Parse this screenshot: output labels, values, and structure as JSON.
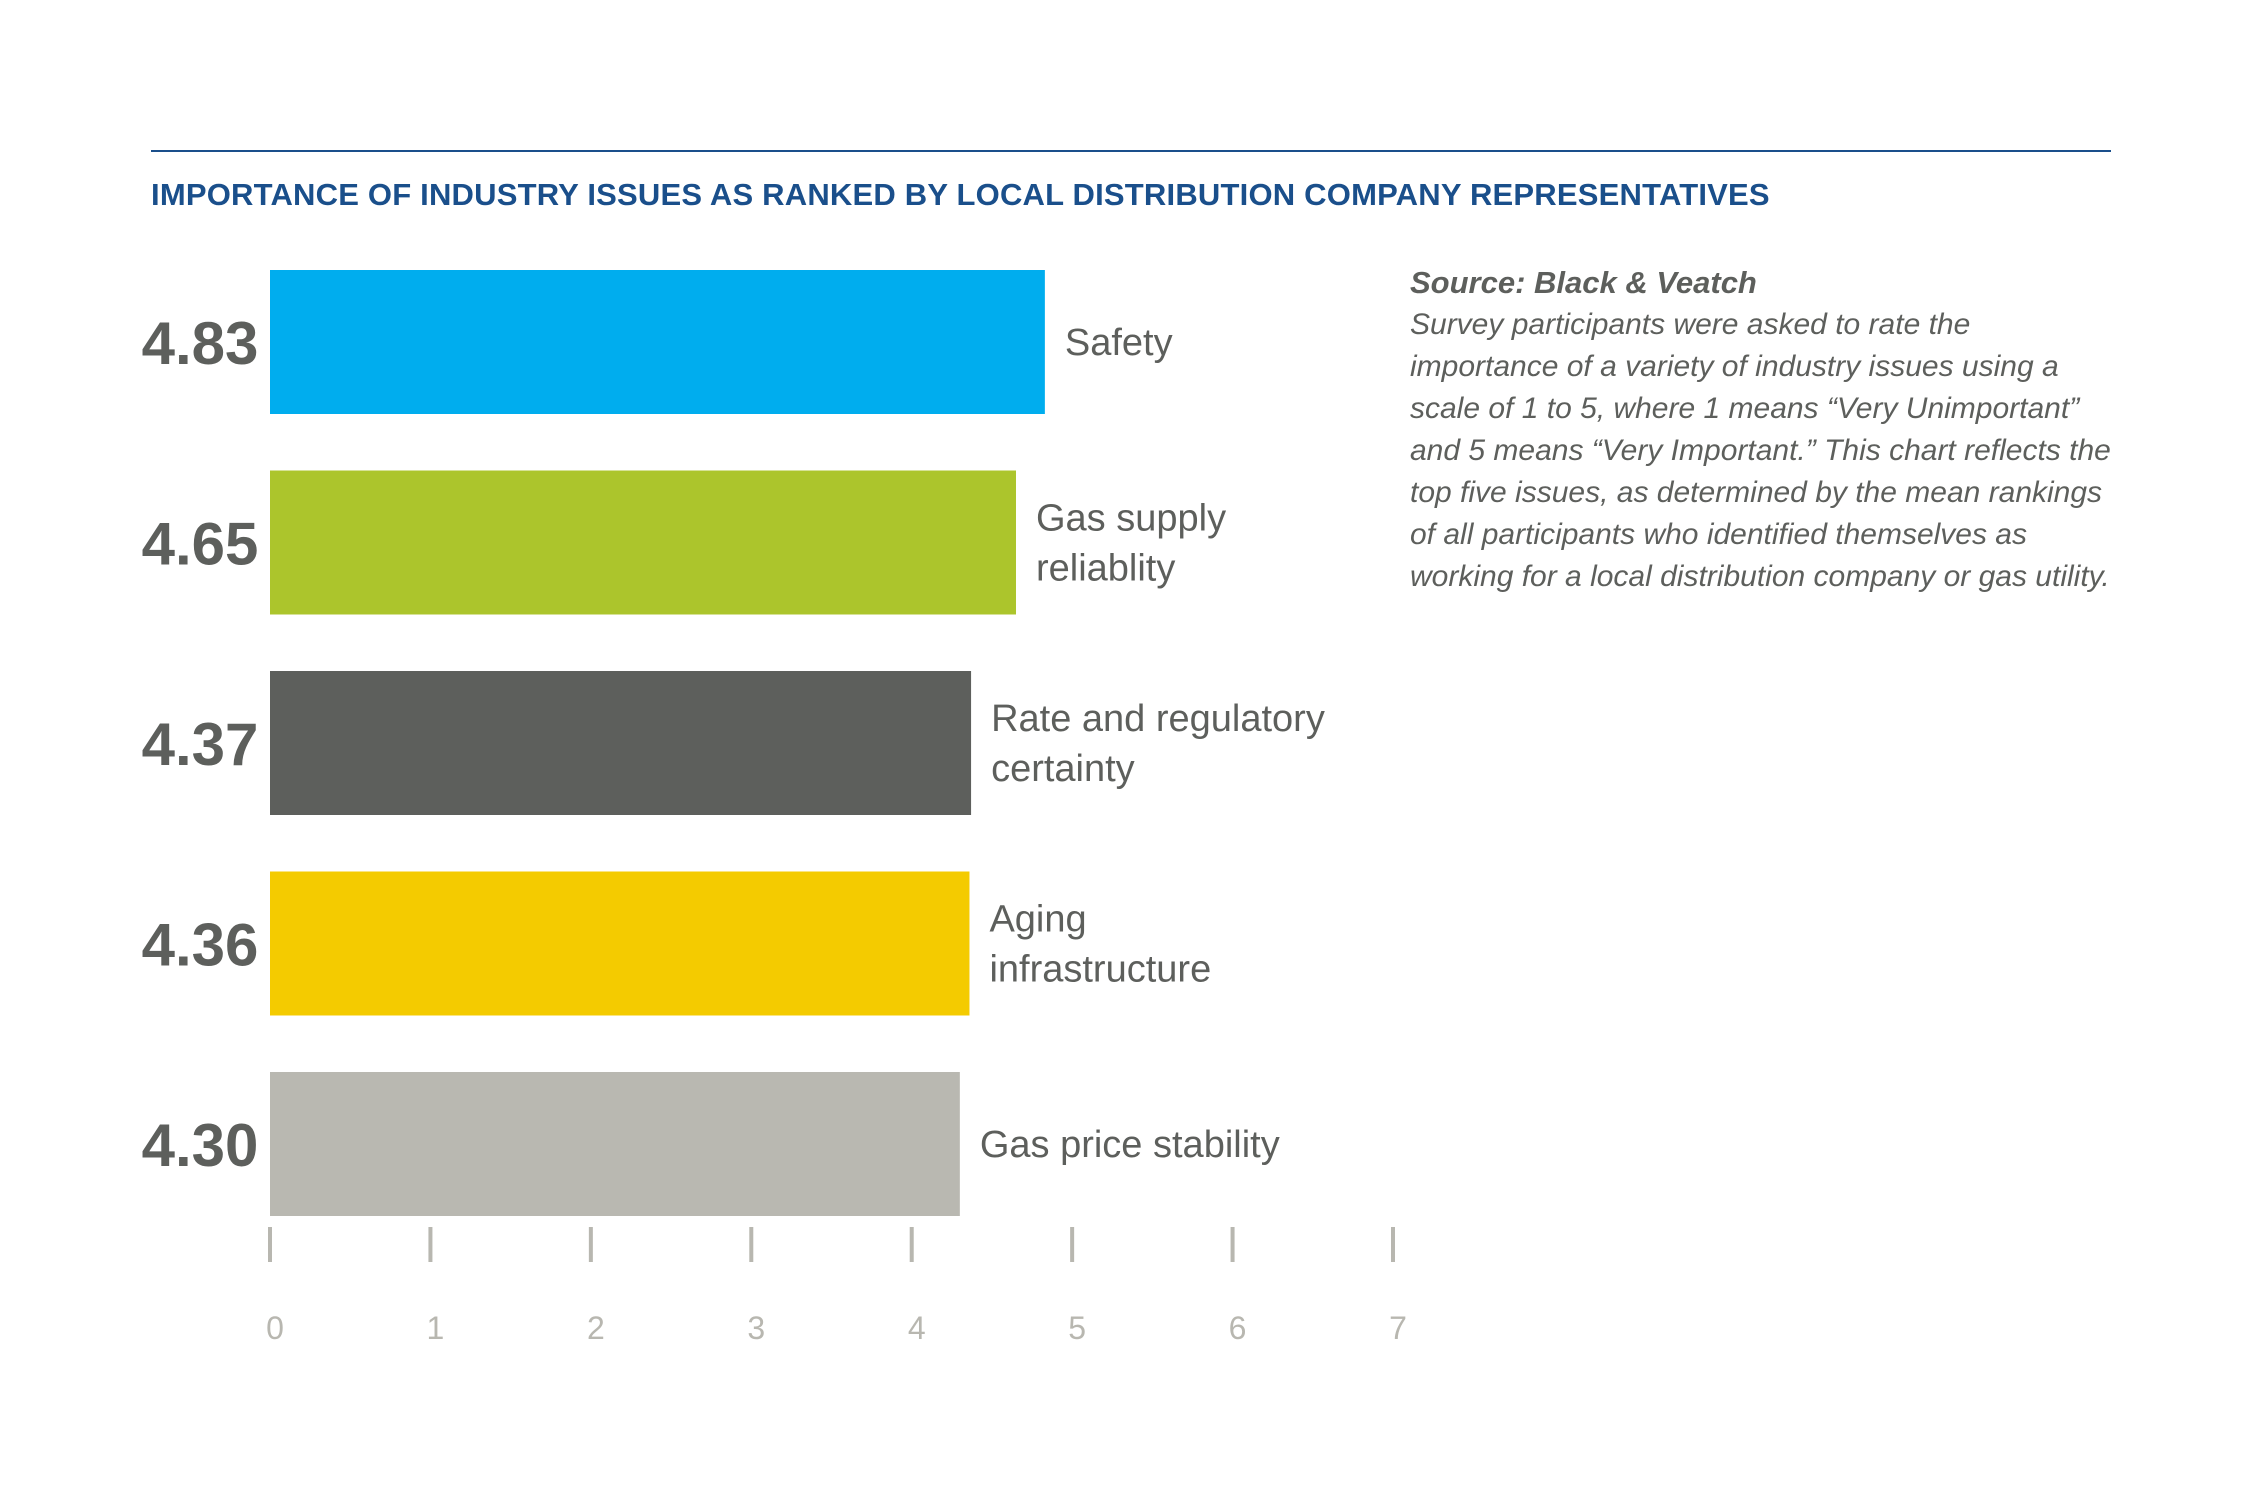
{
  "chart_data": {
    "type": "bar",
    "orientation": "horizontal",
    "title": "IMPORTANCE OF INDUSTRY ISSUES AS RANKED BY LOCAL DISTRIBUTION COMPANY REPRESENTATIVES",
    "categories": [
      [
        "Safety"
      ],
      [
        "Gas supply",
        "reliablity"
      ],
      [
        "Rate and regulatory",
        "certainty"
      ],
      [
        "Aging",
        "infrastructure"
      ],
      [
        "Gas price stability"
      ]
    ],
    "values": [
      4.83,
      4.65,
      4.37,
      4.36,
      4.3
    ],
    "value_labels": [
      "4.83",
      "4.65",
      "4.37",
      "4.36",
      "4.30"
    ],
    "colors": [
      "#00adee",
      "#acc52c",
      "#5d5f5c",
      "#f4cb00",
      "#b9b8b1"
    ],
    "xlim": [
      0,
      7
    ],
    "x_ticks": [
      0,
      1,
      2,
      3,
      4,
      5,
      6,
      7
    ],
    "x_tick_labels": [
      "0",
      "1",
      "2",
      "3",
      "4",
      "5",
      "6",
      "7"
    ],
    "grid": false,
    "legend": "none"
  },
  "note": {
    "source": "Source: Black & Veatch",
    "text": "Survey participants were asked to rate the importance of a variety of industry issues using a scale of 1 to 5, where 1 means “Very Unimportant” and 5 means “Very Important.” This chart reflects the top five issues, as determined by the mean rankings of all participants who identified themselves as working for a local distribution company or gas utility."
  },
  "colors": {
    "title": "#1a4f8b",
    "text": "#5d5f5c",
    "axis": "#b8b7b0"
  }
}
